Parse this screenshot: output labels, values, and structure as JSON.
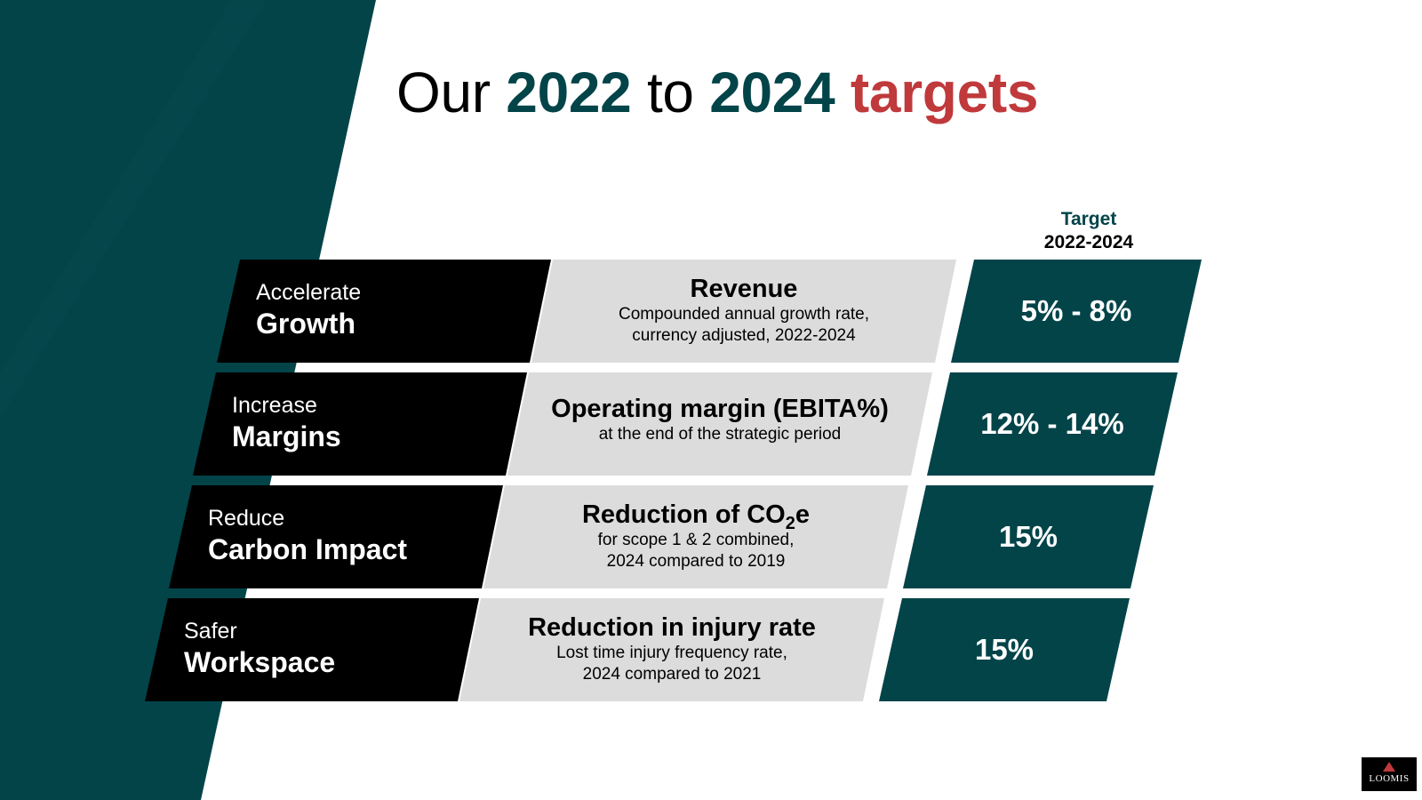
{
  "title": {
    "part1": "Our",
    "year_start": "2022",
    "part2": "to",
    "year_end": "2024",
    "part3": "targets"
  },
  "target_column": {
    "label": "Target",
    "period": "2022-2024"
  },
  "rows": [
    {
      "goal_line1": "Accelerate",
      "goal_line2": "Growth",
      "metric_title": "Revenue",
      "metric_sub1": "Compounded annual growth rate,",
      "metric_sub2": "currency adjusted, 2022-2024",
      "target": "5% - 8%"
    },
    {
      "goal_line1": "Increase",
      "goal_line2": "Margins",
      "metric_title": "Operating margin (EBITA%)",
      "metric_sub1": "at the end of the strategic period",
      "metric_sub2": "",
      "target": "12% - 14%"
    },
    {
      "goal_line1": "Reduce",
      "goal_line2": "Carbon Impact",
      "metric_title_pre": "Reduction of CO",
      "metric_title_sub": "2",
      "metric_title_post": "e",
      "metric_sub1": "for scope 1 & 2 combined,",
      "metric_sub2": "2024 compared to 2019",
      "target": "15%"
    },
    {
      "goal_line1": "Safer",
      "goal_line2": "Workspace",
      "metric_title": "Reduction in injury rate",
      "metric_sub1": "Lost time injury frequency rate,",
      "metric_sub2": "2024 compared to 2021",
      "target": "15%"
    }
  ],
  "logo": {
    "text": "LOOMIS",
    "icon": "triangle-icon"
  },
  "colors": {
    "teal": "#034449",
    "red": "#c0393b",
    "black": "#000000",
    "grey": "#dcdcdc",
    "white": "#ffffff"
  }
}
